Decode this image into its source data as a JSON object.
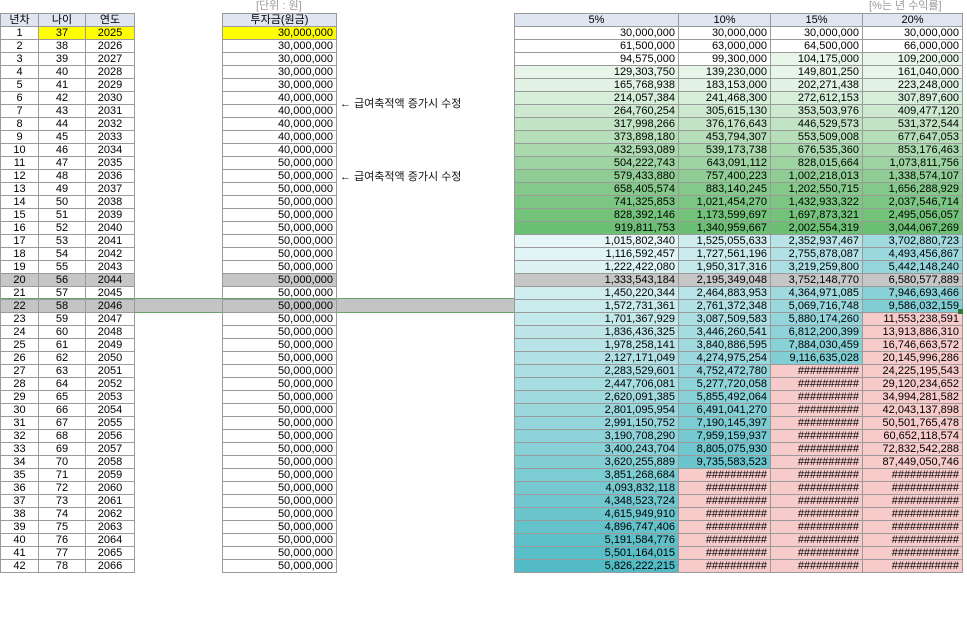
{
  "units": {
    "left": "[단위 : 원]",
    "right": "[%는 년 수익률]"
  },
  "headers": {
    "year_no": "년차",
    "age": "나이",
    "year": "연도",
    "investment": "투자금(원금)",
    "rates": [
      "5%",
      "10%",
      "15%",
      "20%"
    ]
  },
  "notes": [
    {
      "arrow": "←",
      "text": "급여축적액 증가시 수정"
    },
    {
      "arrow": "←",
      "text": "급여축적액 증가시 수정"
    }
  ],
  "highlight_colors": {
    "yellow": "#ffff00",
    "selected_row": "#c6c6c6",
    "red_fill": "#f8cbcb"
  },
  "rows": [
    [
      "1",
      "37",
      "2025",
      "30,000,000",
      "30,000,000",
      "30,000,000",
      "30,000,000",
      "30,000,000"
    ],
    [
      "2",
      "38",
      "2026",
      "30,000,000",
      "61,500,000",
      "63,000,000",
      "64,500,000",
      "66,000,000"
    ],
    [
      "3",
      "39",
      "2027",
      "30,000,000",
      "94,575,000",
      "99,300,000",
      "104,175,000",
      "109,200,000"
    ],
    [
      "4",
      "40",
      "2028",
      "30,000,000",
      "129,303,750",
      "139,230,000",
      "149,801,250",
      "161,040,000"
    ],
    [
      "5",
      "41",
      "2029",
      "30,000,000",
      "165,768,938",
      "183,153,000",
      "202,271,438",
      "223,248,000"
    ],
    [
      "6",
      "42",
      "2030",
      "40,000,000",
      "214,057,384",
      "241,468,300",
      "272,612,153",
      "307,897,600"
    ],
    [
      "7",
      "43",
      "2031",
      "40,000,000",
      "264,760,254",
      "305,615,130",
      "353,503,976",
      "409,477,120"
    ],
    [
      "8",
      "44",
      "2032",
      "40,000,000",
      "317,998,266",
      "376,176,643",
      "446,529,573",
      "531,372,544"
    ],
    [
      "9",
      "45",
      "2033",
      "40,000,000",
      "373,898,180",
      "453,794,307",
      "553,509,008",
      "677,647,053"
    ],
    [
      "10",
      "46",
      "2034",
      "40,000,000",
      "432,593,089",
      "539,173,738",
      "676,535,360",
      "853,176,463"
    ],
    [
      "11",
      "47",
      "2035",
      "50,000,000",
      "504,222,743",
      "643,091,112",
      "828,015,664",
      "1,073,811,756"
    ],
    [
      "12",
      "48",
      "2036",
      "50,000,000",
      "579,433,880",
      "757,400,223",
      "1,002,218,013",
      "1,338,574,107"
    ],
    [
      "13",
      "49",
      "2037",
      "50,000,000",
      "658,405,574",
      "883,140,245",
      "1,202,550,715",
      "1,656,288,929"
    ],
    [
      "14",
      "50",
      "2038",
      "50,000,000",
      "741,325,853",
      "1,021,454,270",
      "1,432,933,322",
      "2,037,546,714"
    ],
    [
      "15",
      "51",
      "2039",
      "50,000,000",
      "828,392,146",
      "1,173,599,697",
      "1,697,873,321",
      "2,495,056,057"
    ],
    [
      "16",
      "52",
      "2040",
      "50,000,000",
      "919,811,753",
      "1,340,959,667",
      "2,002,554,319",
      "3,044,067,269"
    ],
    [
      "17",
      "53",
      "2041",
      "50,000,000",
      "1,015,802,340",
      "1,525,055,633",
      "2,352,937,467",
      "3,702,880,723"
    ],
    [
      "18",
      "54",
      "2042",
      "50,000,000",
      "1,116,592,457",
      "1,727,561,196",
      "2,755,878,087",
      "4,493,456,867"
    ],
    [
      "19",
      "55",
      "2043",
      "50,000,000",
      "1,222,422,080",
      "1,950,317,316",
      "3,219,259,800",
      "5,442,148,240"
    ],
    [
      "20",
      "56",
      "2044",
      "50,000,000",
      "1,333,543,184",
      "2,195,349,048",
      "3,752,148,770",
      "6,580,577,889"
    ],
    [
      "21",
      "57",
      "2045",
      "50,000,000",
      "1,450,220,344",
      "2,464,883,953",
      "4,364,971,085",
      "7,946,693,466"
    ],
    [
      "22",
      "58",
      "2046",
      "50,000,000",
      "1,572,731,361",
      "2,761,372,348",
      "5,069,716,748",
      "9,586,032,159"
    ],
    [
      "23",
      "59",
      "2047",
      "50,000,000",
      "1,701,367,929",
      "3,087,509,583",
      "5,880,174,260",
      "11,553,238,591"
    ],
    [
      "24",
      "60",
      "2048",
      "50,000,000",
      "1,836,436,325",
      "3,446,260,541",
      "6,812,200,399",
      "13,913,886,310"
    ],
    [
      "25",
      "61",
      "2049",
      "50,000,000",
      "1,978,258,141",
      "3,840,886,595",
      "7,884,030,459",
      "16,746,663,572"
    ],
    [
      "26",
      "62",
      "2050",
      "50,000,000",
      "2,127,171,049",
      "4,274,975,254",
      "9,116,635,028",
      "20,145,996,286"
    ],
    [
      "27",
      "63",
      "2051",
      "50,000,000",
      "2,283,529,601",
      "4,752,472,780",
      "##########",
      "24,225,195,543"
    ],
    [
      "28",
      "64",
      "2052",
      "50,000,000",
      "2,447,706,081",
      "5,277,720,058",
      "##########",
      "29,120,234,652"
    ],
    [
      "29",
      "65",
      "2053",
      "50,000,000",
      "2,620,091,385",
      "5,855,492,064",
      "##########",
      "34,994,281,582"
    ],
    [
      "30",
      "66",
      "2054",
      "50,000,000",
      "2,801,095,954",
      "6,491,041,270",
      "##########",
      "42,043,137,898"
    ],
    [
      "31",
      "67",
      "2055",
      "50,000,000",
      "2,991,150,752",
      "7,190,145,397",
      "##########",
      "50,501,765,478"
    ],
    [
      "32",
      "68",
      "2056",
      "50,000,000",
      "3,190,708,290",
      "7,959,159,937",
      "##########",
      "60,652,118,574"
    ],
    [
      "33",
      "69",
      "2057",
      "50,000,000",
      "3,400,243,704",
      "8,805,075,930",
      "##########",
      "72,832,542,288"
    ],
    [
      "34",
      "70",
      "2058",
      "50,000,000",
      "3,620,255,889",
      "9,735,583,523",
      "##########",
      "87,449,050,746"
    ],
    [
      "35",
      "71",
      "2059",
      "50,000,000",
      "3,851,268,684",
      "##########",
      "##########",
      "###########"
    ],
    [
      "36",
      "72",
      "2060",
      "50,000,000",
      "4,093,832,118",
      "##########",
      "##########",
      "###########"
    ],
    [
      "37",
      "73",
      "2061",
      "50,000,000",
      "4,348,523,724",
      "##########",
      "##########",
      "###########"
    ],
    [
      "38",
      "74",
      "2062",
      "50,000,000",
      "4,615,949,910",
      "##########",
      "##########",
      "###########"
    ],
    [
      "39",
      "75",
      "2063",
      "50,000,000",
      "4,896,747,406",
      "##########",
      "##########",
      "###########"
    ],
    [
      "40",
      "76",
      "2064",
      "50,000,000",
      "5,191,584,776",
      "##########",
      "##########",
      "###########"
    ],
    [
      "41",
      "77",
      "2065",
      "50,000,000",
      "5,501,164,015",
      "##########",
      "##########",
      "###########"
    ],
    [
      "42",
      "78",
      "2066",
      "50,000,000",
      "5,826,222,215",
      "##########",
      "##########",
      "###########"
    ]
  ]
}
